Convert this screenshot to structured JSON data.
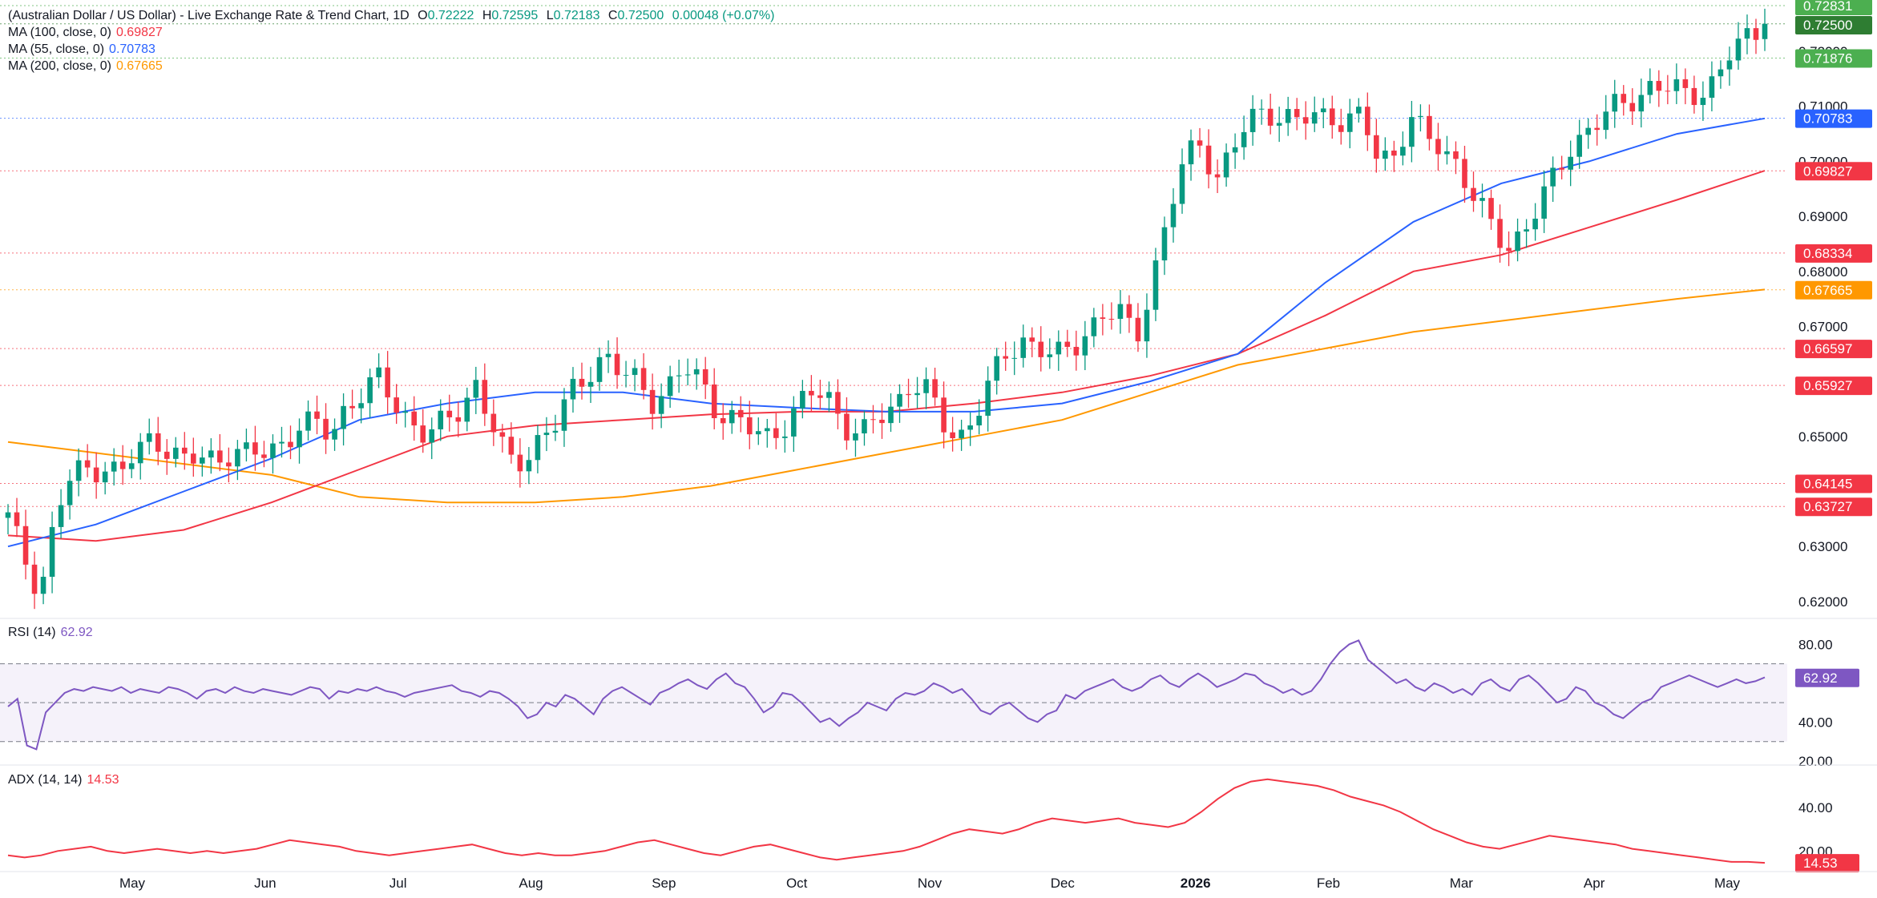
{
  "header": {
    "symbol": "(Australian Dollar / US Dollar) - Live Exchange Rate & Trend Chart, 1D",
    "o_label": "O",
    "o_value": "0.72222",
    "h_label": "H",
    "h_value": "0.72595",
    "l_label": "L",
    "l_value": "0.72183",
    "c_label": "C",
    "c_value": "0.72500",
    "change": "0.00048 (+0.07%)"
  },
  "ma_legends": [
    {
      "label": "MA (100, close, 0)",
      "value": "0.69827",
      "color": "#f23645"
    },
    {
      "label": "MA (55, close, 0)",
      "value": "0.70783",
      "color": "#2962ff"
    },
    {
      "label": "MA (200, close, 0)",
      "value": "0.67665",
      "color": "#ff9800"
    }
  ],
  "rsi_legend": {
    "label": "RSI (14)",
    "value": "62.92",
    "color": "#7e57c2"
  },
  "adx_legend": {
    "label": "ADX (14, 14)",
    "value": "14.53",
    "color": "#f23645"
  },
  "chart_data": [
    {
      "type": "candlestick",
      "title": "AUD/USD 1D",
      "ylim": [
        0.6175,
        0.7235
      ],
      "x_months": [
        "May",
        "Jun",
        "Jul",
        "Aug",
        "Sep",
        "Oct",
        "Nov",
        "Dec",
        "2026",
        "Feb",
        "Mar",
        "Apr",
        "May"
      ],
      "y_ticks": [
        "0.72000",
        "0.71000",
        "0.70000",
        "0.69000",
        "0.68000",
        "0.67000",
        "0.65000",
        "0.63000",
        "0.62000"
      ],
      "y_tick_values": [
        0.72,
        0.71,
        0.7,
        0.69,
        0.68,
        0.67,
        0.65,
        0.63,
        0.62
      ],
      "close_path": [
        0.635,
        0.628,
        0.622,
        0.636,
        0.643,
        0.644,
        0.645,
        0.643,
        0.647,
        0.65,
        0.648,
        0.645,
        0.646,
        0.646,
        0.648,
        0.646,
        0.647,
        0.649,
        0.652,
        0.652,
        0.65,
        0.656,
        0.658,
        0.66,
        0.656,
        0.653,
        0.65,
        0.652,
        0.655,
        0.66,
        0.652,
        0.645,
        0.646,
        0.65,
        0.652,
        0.658,
        0.662,
        0.665,
        0.661,
        0.66,
        0.657,
        0.659,
        0.662,
        0.66,
        0.655,
        0.653,
        0.651,
        0.65,
        0.652,
        0.655,
        0.658,
        0.657,
        0.652,
        0.65,
        0.653,
        0.656,
        0.66,
        0.658,
        0.652,
        0.65,
        0.654,
        0.66,
        0.665,
        0.668,
        0.666,
        0.664,
        0.666,
        0.67,
        0.672,
        0.672,
        0.668,
        0.679,
        0.69,
        0.7,
        0.704,
        0.697,
        0.702,
        0.707,
        0.71,
        0.708,
        0.707,
        0.708,
        0.709,
        0.707,
        0.708,
        0.7,
        0.702,
        0.708,
        0.704,
        0.702,
        0.7,
        0.693,
        0.688,
        0.684,
        0.688,
        0.692,
        0.697,
        0.703,
        0.706,
        0.708,
        0.71,
        0.712,
        0.714,
        0.713,
        0.712,
        0.713,
        0.715,
        0.72,
        0.7225,
        0.725
      ],
      "ma55_points": [
        [
          0,
          0.63
        ],
        [
          0.05,
          0.634
        ],
        [
          0.1,
          0.64
        ],
        [
          0.15,
          0.646
        ],
        [
          0.2,
          0.653
        ],
        [
          0.25,
          0.656
        ],
        [
          0.3,
          0.658
        ],
        [
          0.35,
          0.658
        ],
        [
          0.4,
          0.656
        ],
        [
          0.45,
          0.6552
        ],
        [
          0.5,
          0.6545
        ],
        [
          0.55,
          0.6545
        ],
        [
          0.6,
          0.656
        ],
        [
          0.65,
          0.66
        ],
        [
          0.7,
          0.665
        ],
        [
          0.75,
          0.678
        ],
        [
          0.8,
          0.689
        ],
        [
          0.85,
          0.696
        ],
        [
          0.9,
          0.7
        ],
        [
          0.95,
          0.705
        ],
        [
          1.0,
          0.7078
        ]
      ],
      "ma100_points": [
        [
          0,
          0.632
        ],
        [
          0.05,
          0.631
        ],
        [
          0.1,
          0.633
        ],
        [
          0.15,
          0.638
        ],
        [
          0.2,
          0.644
        ],
        [
          0.25,
          0.65
        ],
        [
          0.3,
          0.652
        ],
        [
          0.35,
          0.653
        ],
        [
          0.4,
          0.654
        ],
        [
          0.45,
          0.6545
        ],
        [
          0.5,
          0.6545
        ],
        [
          0.55,
          0.656
        ],
        [
          0.6,
          0.658
        ],
        [
          0.65,
          0.661
        ],
        [
          0.7,
          0.665
        ],
        [
          0.75,
          0.672
        ],
        [
          0.8,
          0.68
        ],
        [
          0.85,
          0.683
        ],
        [
          0.9,
          0.688
        ],
        [
          0.95,
          0.693
        ],
        [
          1.0,
          0.6983
        ]
      ],
      "ma200_points": [
        [
          0,
          0.649
        ],
        [
          0.05,
          0.647
        ],
        [
          0.1,
          0.645
        ],
        [
          0.15,
          0.643
        ],
        [
          0.2,
          0.639
        ],
        [
          0.25,
          0.638
        ],
        [
          0.3,
          0.638
        ],
        [
          0.35,
          0.639
        ],
        [
          0.4,
          0.641
        ],
        [
          0.45,
          0.644
        ],
        [
          0.5,
          0.647
        ],
        [
          0.55,
          0.65
        ],
        [
          0.6,
          0.653
        ],
        [
          0.65,
          0.658
        ],
        [
          0.7,
          0.663
        ],
        [
          0.75,
          0.666
        ],
        [
          0.8,
          0.669
        ],
        [
          0.85,
          0.671
        ],
        [
          0.9,
          0.673
        ],
        [
          0.95,
          0.675
        ],
        [
          1.0,
          0.6767
        ]
      ],
      "price_lines": [
        {
          "value": 0.72831,
          "label": "0.72831",
          "color": "#4caf50"
        },
        {
          "value": 0.725,
          "label": "0.72500",
          "color": "#2e7d32"
        },
        {
          "value": 0.71876,
          "label": "0.71876",
          "color": "#4caf50"
        },
        {
          "value": 0.70783,
          "label": "0.70783",
          "color": "#2962ff"
        },
        {
          "value": 0.69827,
          "label": "0.69827",
          "color": "#f23645"
        },
        {
          "value": 0.68334,
          "label": "0.68334",
          "color": "#f23645"
        },
        {
          "value": 0.67665,
          "label": "0.67665",
          "color": "#ff9800"
        },
        {
          "value": 0.66597,
          "label": "0.66597",
          "color": "#f23645"
        },
        {
          "value": 0.65927,
          "label": "0.65927",
          "color": "#f23645"
        },
        {
          "value": 0.64145,
          "label": "0.64145",
          "color": "#f23645"
        },
        {
          "value": 0.63727,
          "label": "0.63727",
          "color": "#f23645"
        }
      ]
    },
    {
      "type": "line",
      "title": "RSI (14)",
      "ylim": [
        20,
        90
      ],
      "y_ticks": [
        "80.00",
        "40.00",
        "20.00"
      ],
      "y_tick_values": [
        80,
        40,
        20
      ],
      "band": [
        30,
        70
      ],
      "midline": 50,
      "last_value": "62.92",
      "values": [
        48,
        52,
        28,
        26,
        45,
        50,
        55,
        57,
        56,
        58,
        57,
        56,
        58,
        55,
        57,
        56,
        55,
        58,
        57,
        55,
        52,
        56,
        57,
        55,
        58,
        56,
        55,
        57,
        56,
        55,
        54,
        56,
        58,
        57,
        52,
        56,
        55,
        57,
        56,
        58,
        56,
        55,
        53,
        55,
        56,
        57,
        58,
        59,
        56,
        55,
        53,
        56,
        55,
        52,
        48,
        42,
        44,
        50,
        48,
        54,
        52,
        48,
        44,
        52,
        56,
        58,
        55,
        52,
        49,
        55,
        57,
        60,
        62,
        59,
        57,
        62,
        65,
        60,
        58,
        52,
        45,
        48,
        55,
        54,
        50,
        45,
        40,
        42,
        38,
        42,
        45,
        50,
        48,
        46,
        52,
        55,
        54,
        56,
        60,
        58,
        55,
        57,
        52,
        46,
        44,
        48,
        50,
        46,
        42,
        40,
        44,
        46,
        54,
        52,
        56,
        58,
        60,
        62,
        58,
        56,
        58,
        62,
        64,
        60,
        58,
        62,
        65,
        62,
        58,
        60,
        62,
        65,
        64,
        60,
        58,
        55,
        57,
        54,
        56,
        62,
        70,
        76,
        80,
        82,
        72,
        68,
        64,
        60,
        62,
        58,
        56,
        60,
        58,
        55,
        57,
        54,
        60,
        62,
        58,
        56,
        62,
        64,
        60,
        55,
        50,
        52,
        58,
        56,
        50,
        48,
        44,
        42,
        46,
        50,
        52,
        58,
        60,
        62,
        64,
        62,
        60,
        58,
        60,
        62,
        60,
        61,
        63
      ]
    },
    {
      "type": "line",
      "title": "ADX (14, 14)",
      "ylim": [
        12,
        57
      ],
      "y_ticks": [
        "40.00",
        "20.00"
      ],
      "y_tick_values": [
        40,
        20
      ],
      "last_value": "14.53",
      "values": [
        18,
        17,
        18,
        20,
        21,
        22,
        20,
        19,
        20,
        21,
        20,
        19,
        20,
        19,
        20,
        21,
        23,
        25,
        24,
        23,
        22,
        20,
        19,
        18,
        19,
        20,
        21,
        22,
        23,
        21,
        19,
        18,
        19,
        18,
        18,
        19,
        20,
        22,
        24,
        25,
        23,
        21,
        19,
        18,
        20,
        22,
        23,
        21,
        19,
        17,
        16,
        17,
        18,
        19,
        20,
        22,
        25,
        28,
        30,
        29,
        28,
        30,
        33,
        35,
        34,
        33,
        34,
        35,
        33,
        32,
        31,
        33,
        38,
        44,
        49,
        52,
        53,
        52,
        51,
        50,
        48,
        45,
        43,
        41,
        38,
        34,
        30,
        27,
        24,
        22,
        21,
        23,
        25,
        27,
        26,
        25,
        24,
        23,
        21,
        20,
        19,
        18,
        17,
        16,
        15,
        15,
        14.53
      ]
    }
  ]
}
